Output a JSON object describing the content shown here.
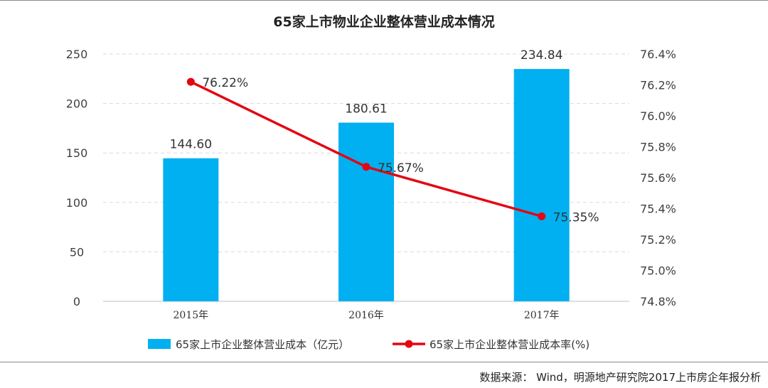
{
  "source_note": "数据来源： Wind，明源地产研究院2017上市房企年报分析",
  "colors": {
    "bar": "#00b0f0",
    "line": "#e30613",
    "grid": "#d9d9d9",
    "axis": "#bfbfbf",
    "text": "#404040"
  },
  "chart_data": {
    "type": "bar",
    "title": "65家上市物业企业整体营业成本情况",
    "categories": [
      "2015年",
      "2016年",
      "2017年"
    ],
    "series": [
      {
        "name": "65家上市企业整体营业成本（亿元）",
        "type": "bar",
        "axis": "left",
        "values": [
          144.6,
          180.61,
          234.84
        ],
        "labels": [
          "144.60",
          "180.61",
          "234.84"
        ]
      },
      {
        "name": "65家上市企业整体营业成本率(%)",
        "type": "line",
        "axis": "right",
        "values": [
          76.22,
          75.67,
          75.35
        ],
        "labels": [
          "76.22%",
          "75.67%",
          "75.35%"
        ]
      }
    ],
    "y_left": {
      "min": 0,
      "max": 250,
      "ticks": [
        0,
        50,
        100,
        150,
        200,
        250
      ],
      "tick_labels": [
        "0",
        "50",
        "100",
        "150",
        "200",
        "250"
      ]
    },
    "y_right": {
      "min": 74.8,
      "max": 76.4,
      "ticks": [
        74.8,
        75.0,
        75.2,
        75.4,
        75.6,
        75.8,
        76.0,
        76.2,
        76.4
      ],
      "tick_labels": [
        "74.8%",
        "75.0%",
        "75.2%",
        "75.4%",
        "75.6%",
        "75.8%",
        "76.0%",
        "76.2%",
        "76.4%"
      ]
    },
    "grid": true,
    "legend_position": "bottom"
  }
}
